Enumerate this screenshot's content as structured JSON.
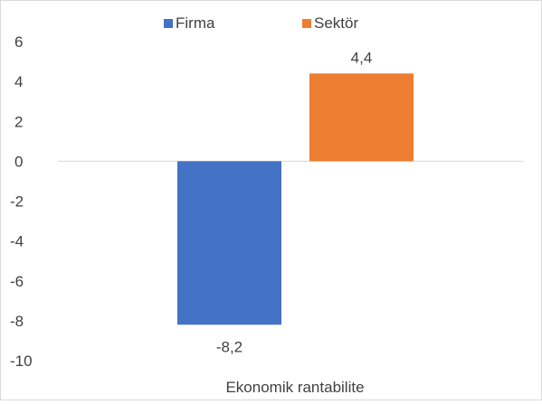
{
  "chart_data": {
    "type": "bar",
    "categories": [
      "Ekonomik rantabilite"
    ],
    "series": [
      {
        "name": "Firma",
        "values": [
          -8.2
        ],
        "color": "#4472C4"
      },
      {
        "name": "Sektör",
        "values": [
          4.4
        ],
        "color": "#ED7D31"
      }
    ],
    "data_labels": [
      "-8,2",
      "4,4"
    ],
    "title": "",
    "xlabel": "",
    "ylabel": "",
    "ylim": [
      -10,
      6
    ],
    "y_ticks": [
      6,
      4,
      2,
      0,
      -2,
      -4,
      -6,
      -8,
      -10
    ],
    "grid": false,
    "legend_position": "top",
    "axis_color": "#d9d9d9",
    "text_color": "#404040"
  }
}
